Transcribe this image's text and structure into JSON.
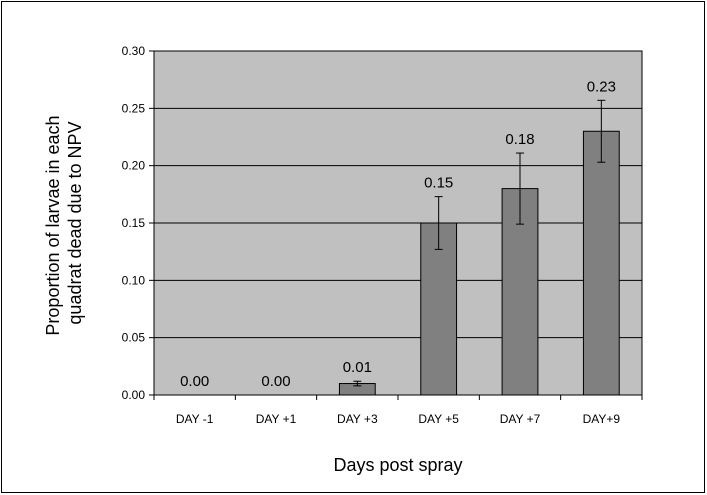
{
  "chart_data": {
    "type": "bar",
    "title": "",
    "xlabel": "Days post spray",
    "ylabel_lines": [
      "Proportion of larvae in each",
      "quadrat dead due to NPV"
    ],
    "categories": [
      "DAY -1",
      "DAY +1",
      "DAY +3",
      "DAY +5",
      "DAY +7",
      "DAY+9"
    ],
    "values": [
      0.0,
      0.0,
      0.01,
      0.15,
      0.18,
      0.23
    ],
    "value_labels": [
      "0.00",
      "0.00",
      "0.01",
      "0.15",
      "0.18",
      "0.23"
    ],
    "error": [
      0.0,
      0.0,
      0.002,
      0.023,
      0.031,
      0.027
    ],
    "ylim": [
      0,
      0.3
    ],
    "yticks": [
      "0.00",
      "0.05",
      "0.10",
      "0.15",
      "0.20",
      "0.25",
      "0.30"
    ],
    "grid": true,
    "legend": "none",
    "colors": {
      "plot_background": "#c0c0c0",
      "bar_fill": "#808080",
      "bar_stroke": "#000000",
      "gridline": "#000000"
    }
  }
}
